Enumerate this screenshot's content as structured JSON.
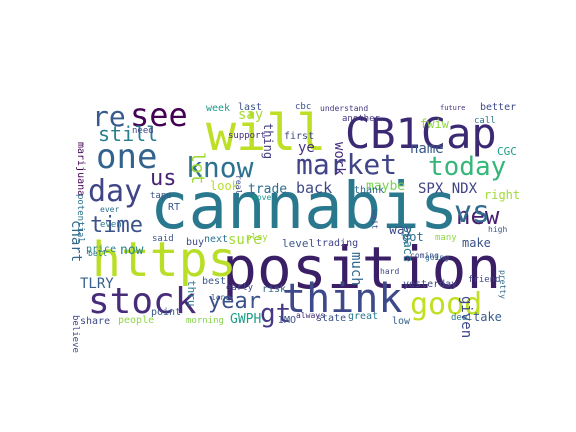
{
  "wordcloud": {
    "background": "#ffffff",
    "words": [
      {
        "text": "cannabis",
        "color": "#2a788e"
      },
      {
        "text": "position",
        "color": "#3b1f66"
      },
      {
        "text": "CB1Cap",
        "color": "#3b2a73"
      },
      {
        "text": "will",
        "color": "#bddf26"
      },
      {
        "text": "https",
        "color": "#b9de28"
      },
      {
        "text": "think",
        "color": "#3e4989"
      },
      {
        "text": "stock",
        "color": "#472c7a"
      },
      {
        "text": "one",
        "color": "#33638d"
      },
      {
        "text": "know",
        "color": "#2c728e"
      },
      {
        "text": "market",
        "color": "#414487"
      },
      {
        "text": "good",
        "color": "#c2df23"
      },
      {
        "text": "see",
        "color": "#440154"
      },
      {
        "text": "day",
        "color": "#404588"
      },
      {
        "text": "today",
        "color": "#35b779"
      },
      {
        "text": "year",
        "color": "#3b528b"
      },
      {
        "text": "re",
        "color": "#38598c"
      },
      {
        "text": "new",
        "color": "#481f70"
      },
      {
        "text": "vs",
        "color": "#2f6c8e"
      },
      {
        "text": "gt",
        "color": "#443983"
      },
      {
        "text": "time",
        "color": "#3b528b"
      },
      {
        "text": "us",
        "color": "#482173"
      },
      {
        "text": "still",
        "color": "#277f8e"
      },
      {
        "text": "lot",
        "color": "#9fda3a"
      },
      {
        "text": "chart",
        "color": "#31688e"
      },
      {
        "text": "SPX NDX",
        "color": "#414487"
      },
      {
        "text": "name",
        "color": "#39568c"
      },
      {
        "text": "maybe",
        "color": "#7ad151"
      },
      {
        "text": "back",
        "color": "#3e4989"
      },
      {
        "text": "trade",
        "color": "#2e6e8e"
      },
      {
        "text": "look",
        "color": "#b5de2b"
      },
      {
        "text": "work",
        "color": "#46307e"
      },
      {
        "text": "ye",
        "color": "#46337f"
      },
      {
        "text": "right",
        "color": "#a0da39"
      },
      {
        "text": "fwiw",
        "color": "#8fd744"
      },
      {
        "text": "now",
        "color": "#26828e"
      },
      {
        "text": "TLRY",
        "color": "#355f8d"
      },
      {
        "text": "GWPH",
        "color": "#1f9e89"
      },
      {
        "text": "thru",
        "color": "#2a788e"
      },
      {
        "text": "level",
        "color": "#38598c"
      },
      {
        "text": "trading",
        "color": "#414487"
      },
      {
        "text": "much",
        "color": "#31688e"
      },
      {
        "text": "way",
        "color": "#3e4989"
      },
      {
        "text": "got",
        "color": "#2d708e"
      },
      {
        "text": "make",
        "color": "#3b528b"
      },
      {
        "text": "given",
        "color": "#3e4989"
      },
      {
        "text": "take",
        "color": "#365c8d"
      },
      {
        "text": "deal",
        "color": "#2a788e"
      },
      {
        "text": "CGC",
        "color": "#1f9e89"
      },
      {
        "text": "say",
        "color": "#a8db34"
      },
      {
        "text": "thing",
        "color": "#433e85"
      },
      {
        "text": "first",
        "color": "#404688"
      },
      {
        "text": "space",
        "color": "#2a788e"
      },
      {
        "text": "buy",
        "color": "#3e4989"
      },
      {
        "text": "sure",
        "color": "#a5db36"
      },
      {
        "text": "next",
        "color": "#2c728e"
      },
      {
        "text": "said",
        "color": "#39568c"
      },
      {
        "text": "price",
        "color": "#26828e"
      },
      {
        "text": "marijuana",
        "color": "#440154"
      },
      {
        "text": "week",
        "color": "#1f988b"
      },
      {
        "text": "last",
        "color": "#3b528b"
      },
      {
        "text": "support",
        "color": "#46307e"
      },
      {
        "text": "another",
        "color": "#443983"
      },
      {
        "text": "thank",
        "color": "#31688e"
      },
      {
        "text": "better",
        "color": "#3e4989"
      },
      {
        "text": "call",
        "color": "#2a788e"
      },
      {
        "text": "tape",
        "color": "#3b528b"
      },
      {
        "text": "need",
        "color": "#404688"
      },
      {
        "text": "point",
        "color": "#39568c"
      },
      {
        "text": "best",
        "color": "#38598c"
      },
      {
        "text": "morning",
        "color": "#84d44b"
      },
      {
        "text": "share",
        "color": "#3e4989"
      },
      {
        "text": "people",
        "color": "#8fd744"
      },
      {
        "text": "yesterday",
        "color": "#404688"
      },
      {
        "text": "low",
        "color": "#35608d"
      },
      {
        "text": "IMO",
        "color": "#3b528b"
      },
      {
        "text": "great",
        "color": "#2a788e"
      },
      {
        "text": "risk",
        "color": "#31688e"
      },
      {
        "text": "early",
        "color": "#3e4989"
      },
      {
        "text": "always",
        "color": "#482878"
      },
      {
        "text": "state",
        "color": "#3b528b"
      },
      {
        "text": "believe",
        "color": "#404688"
      },
      {
        "text": "long",
        "color": "#39568c"
      },
      {
        "text": "even",
        "color": "#2a788e"
      },
      {
        "text": "many",
        "color": "#8fd744"
      },
      {
        "text": "friend",
        "color": "#3e4989"
      },
      {
        "text": "potential",
        "color": "#2c728e"
      },
      {
        "text": "RT",
        "color": "#39568c"
      },
      {
        "text": "play",
        "color": "#a0da39"
      },
      {
        "text": "cbc",
        "color": "#3b528b"
      },
      {
        "text": "understand",
        "color": "#443983"
      },
      {
        "text": "pretty",
        "color": "#31688e"
      },
      {
        "text": "coming",
        "color": "#3e4989"
      },
      {
        "text": "bell",
        "color": "#2a788e"
      },
      {
        "text": "future",
        "color": "#46337f"
      },
      {
        "text": "high",
        "color": "#39568c"
      },
      {
        "text": "wait",
        "color": "#3b528b"
      },
      {
        "text": "real",
        "color": "#404688"
      },
      {
        "text": "ever",
        "color": "#2c728e"
      },
      {
        "text": "going",
        "color": "#31688e"
      },
      {
        "text": "hard",
        "color": "#3e4989"
      },
      {
        "text": "move",
        "color": "#1f988b"
      }
    ]
  }
}
